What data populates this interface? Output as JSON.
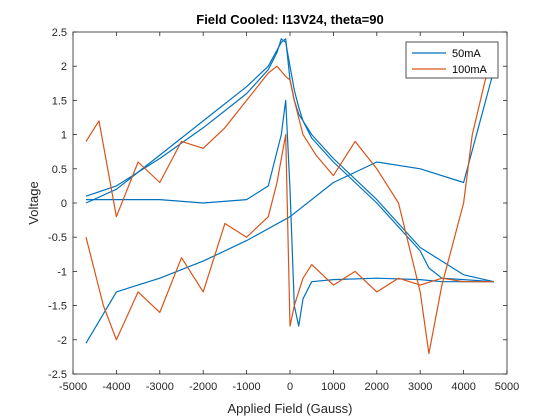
{
  "chart_data": {
    "type": "line",
    "title": "Field Cooled: I13V24, theta=90",
    "xlabel": "Applied Field (Gauss)",
    "ylabel": "Voltage",
    "xlim": [
      -5000,
      5000
    ],
    "ylim": [
      -2.5,
      2.5
    ],
    "xticks": [
      -5000,
      -4000,
      -3000,
      -2000,
      -1000,
      0,
      1000,
      2000,
      3000,
      4000,
      5000
    ],
    "yticks": [
      -2.5,
      -2,
      -1.5,
      -1,
      -0.5,
      0,
      0.5,
      1,
      1.5,
      2,
      2.5
    ],
    "grid": false,
    "legend_position": "top-right",
    "series": [
      {
        "name": "50mA",
        "color": "#0072BD",
        "curves": [
          {
            "x": [
              -4700,
              -4000,
              -3000,
              -2000,
              -1000,
              -500,
              -300,
              -200,
              -100,
              0,
              100,
              200,
              300,
              500,
              1000,
              2000,
              3000,
              3200,
              3500,
              4000,
              4700
            ],
            "y": [
              0.1,
              0.25,
              0.65,
              1.1,
              1.6,
              1.95,
              2.2,
              2.4,
              2.35,
              2.0,
              1.65,
              1.4,
              1.2,
              0.95,
              0.6,
              0.0,
              -0.7,
              -0.95,
              -1.1,
              -1.12,
              -1.15
            ]
          },
          {
            "x": [
              4700,
              4000,
              3500,
              3000,
              2000,
              1000,
              500,
              300,
              200,
              100,
              0,
              -100,
              -200,
              -500,
              -1000,
              -2000,
              -3000,
              -4000,
              -4700
            ],
            "y": [
              -1.15,
              -1.15,
              -1.15,
              -1.12,
              -1.1,
              -1.12,
              -1.15,
              -1.4,
              -1.8,
              -1.5,
              0.2,
              1.5,
              1.0,
              0.25,
              0.05,
              0.0,
              0.05,
              0.05,
              0.05
            ]
          },
          {
            "x": [
              -4700,
              -4000,
              -3000,
              -2000,
              -1000,
              -500,
              -200,
              -100,
              0,
              100,
              200,
              500,
              1000,
              2000,
              3000,
              4000,
              4700
            ],
            "y": [
              0.0,
              0.2,
              0.7,
              1.2,
              1.7,
              2.0,
              2.35,
              2.4,
              1.8,
              1.5,
              1.3,
              1.0,
              0.65,
              0.05,
              -0.65,
              -1.05,
              -1.15
            ]
          },
          {
            "x": [
              -4700,
              -4000,
              -3000,
              -2000,
              -1000,
              0,
              1000,
              2000,
              3000,
              4000,
              4700
            ],
            "y": [
              -2.05,
              -1.3,
              -1.1,
              -0.85,
              -0.55,
              -0.2,
              0.3,
              0.6,
              0.5,
              0.3,
              1.95
            ]
          }
        ]
      },
      {
        "name": "100mA",
        "color": "#D95319",
        "curves": [
          {
            "x": [
              -4700,
              -4400,
              -4000,
              -3500,
              -3000,
              -2500,
              -2000,
              -1500,
              -1000,
              -500,
              -300,
              -100,
              0,
              100,
              300,
              600,
              1000,
              1500,
              2000,
              2500,
              3000,
              3200,
              3500,
              4000,
              4200,
              4500,
              4700
            ],
            "y": [
              0.9,
              1.2,
              -0.2,
              0.6,
              0.3,
              0.9,
              0.8,
              1.1,
              1.5,
              1.9,
              2.0,
              1.85,
              1.8,
              1.5,
              1.0,
              0.7,
              0.4,
              0.9,
              0.5,
              0.0,
              -1.3,
              -2.2,
              -1.2,
              0.0,
              1.0,
              1.8,
              2.1
            ]
          },
          {
            "x": [
              -4700,
              -4300,
              -4000,
              -3500,
              -3000,
              -2500,
              -2000,
              -1500,
              -1000,
              -500,
              -300,
              -100,
              0,
              100,
              300,
              500,
              1000,
              1500,
              2000,
              2500,
              3000,
              3500,
              4000,
              4700
            ],
            "y": [
              -0.5,
              -1.5,
              -2.0,
              -1.3,
              -1.6,
              -0.8,
              -1.3,
              -0.3,
              -0.5,
              -0.2,
              0.3,
              1.0,
              -1.8,
              -1.5,
              -1.1,
              -0.9,
              -1.2,
              -1.0,
              -1.3,
              -1.1,
              -1.2,
              -1.1,
              -1.15,
              -1.15
            ]
          }
        ]
      }
    ]
  }
}
